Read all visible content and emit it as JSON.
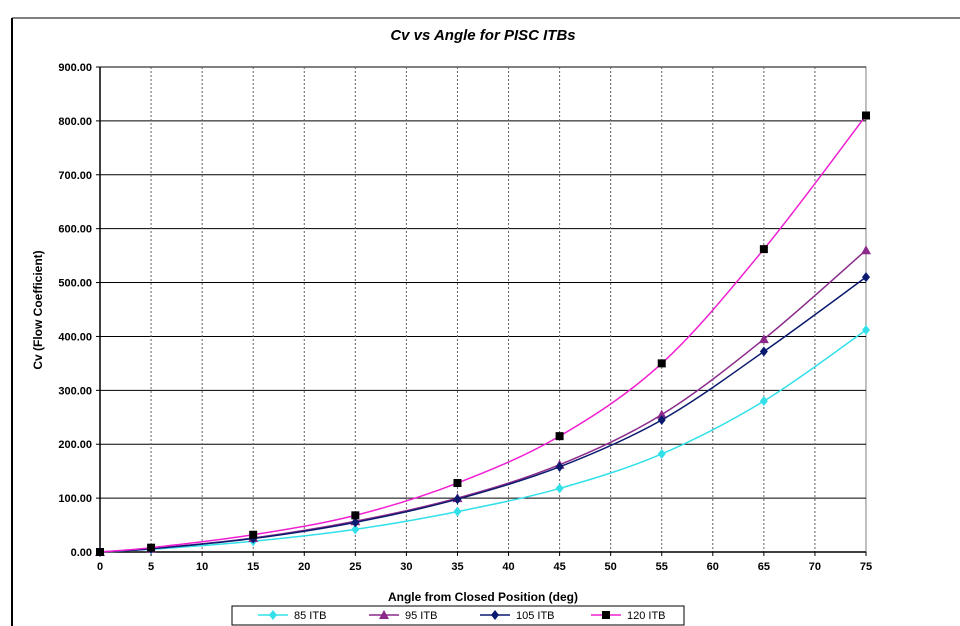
{
  "chart_data": {
    "type": "line",
    "title": "Cv vs Angle for PISC ITBs",
    "xlabel": "Angle from Closed Position (deg)",
    "ylabel": "Cv (Flow Coefficient)",
    "xlim": [
      0,
      75
    ],
    "ylim": [
      0,
      900
    ],
    "x_ticks": [
      "0",
      "5",
      "10",
      "15",
      "20",
      "25",
      "30",
      "35",
      "40",
      "45",
      "50",
      "55",
      "60",
      "65",
      "70",
      "75"
    ],
    "y_ticks": [
      "0.00",
      "100.00",
      "200.00",
      "300.00",
      "400.00",
      "500.00",
      "600.00",
      "700.00",
      "800.00",
      "900.00"
    ],
    "grid": "on",
    "legend_position": "bottom",
    "x": [
      0,
      5,
      15,
      25,
      35,
      45,
      55,
      65,
      75
    ],
    "series": [
      {
        "name": "85 ITB",
        "color": "#33e0ea",
        "marker": "diamond",
        "values": [
          0,
          5,
          20,
          42,
          75,
          118,
          182,
          280,
          412
        ]
      },
      {
        "name": "95 ITB",
        "color": "#8b2a8b",
        "marker": "triangle",
        "values": [
          0,
          6,
          26,
          57,
          100,
          162,
          255,
          395,
          560
        ]
      },
      {
        "name": "105 ITB",
        "color": "#0a1a6e",
        "marker": "diamond",
        "values": [
          0,
          6,
          25,
          55,
          98,
          158,
          245,
          372,
          510
        ]
      },
      {
        "name": "120 ITB",
        "color": "#f020d2",
        "marker": "square",
        "values": [
          0,
          8,
          32,
          68,
          128,
          215,
          350,
          562,
          810
        ]
      }
    ]
  }
}
